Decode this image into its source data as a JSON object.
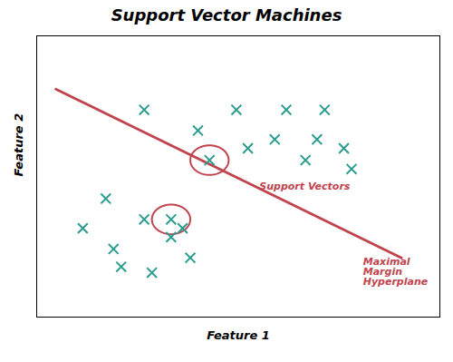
{
  "chart_data": {
    "type": "scatter",
    "title": "Support Vector Machines",
    "xlabel": "Feature 1",
    "ylabel": "Feature 2",
    "xlim": [
      1.0,
      11.5
    ],
    "ylim": [
      1.5,
      11.0
    ],
    "tick_labels": false,
    "grid": false,
    "series": [
      {
        "type": "line",
        "color": "#c0444e",
        "line_style": "solid",
        "x": [
          1.5,
          10.5
        ],
        "values": [
          9.2,
          3.5
        ]
      },
      {
        "type": "scatter",
        "color": "#c0444e",
        "marker": "circle",
        "radius": 0.5,
        "x": [
          5.5,
          4.5
        ],
        "values": [
          6.8,
          4.8
        ]
      },
      {
        "type": "scatter",
        "color": "#2a9d8f",
        "marker": "x",
        "x": [
          3.8,
          5.2,
          6.2,
          7.5,
          8.5,
          6.5,
          7.2,
          8.3,
          9.0,
          8.0,
          9.2
        ],
        "values": [
          8.5,
          7.8,
          8.5,
          8.5,
          8.5,
          7.2,
          7.5,
          7.5,
          7.2,
          6.8,
          6.5
        ]
      },
      {
        "type": "scatter",
        "color": "#2a9d8f",
        "marker": "x",
        "x": [
          2.8,
          2.2,
          3.0,
          3.8,
          4.5,
          3.2,
          4.8,
          4.0,
          5.0
        ],
        "values": [
          5.5,
          4.5,
          3.8,
          4.8,
          4.2,
          3.2,
          4.5,
          3.0,
          3.5
        ]
      },
      {
        "type": "scatter",
        "color": "#2a9d8f",
        "marker": "x",
        "x": [
          5.5,
          4.5
        ],
        "values": [
          6.8,
          4.8
        ]
      }
    ],
    "annotations": [
      {
        "text": "Support Vectors",
        "x": 6.8,
        "y": 5.8,
        "color": "#c0444e"
      },
      {
        "text": "Maximal\nMargin\nHyperplane",
        "x": 9.5,
        "y": 3.5,
        "color": "#c0444e"
      }
    ]
  }
}
